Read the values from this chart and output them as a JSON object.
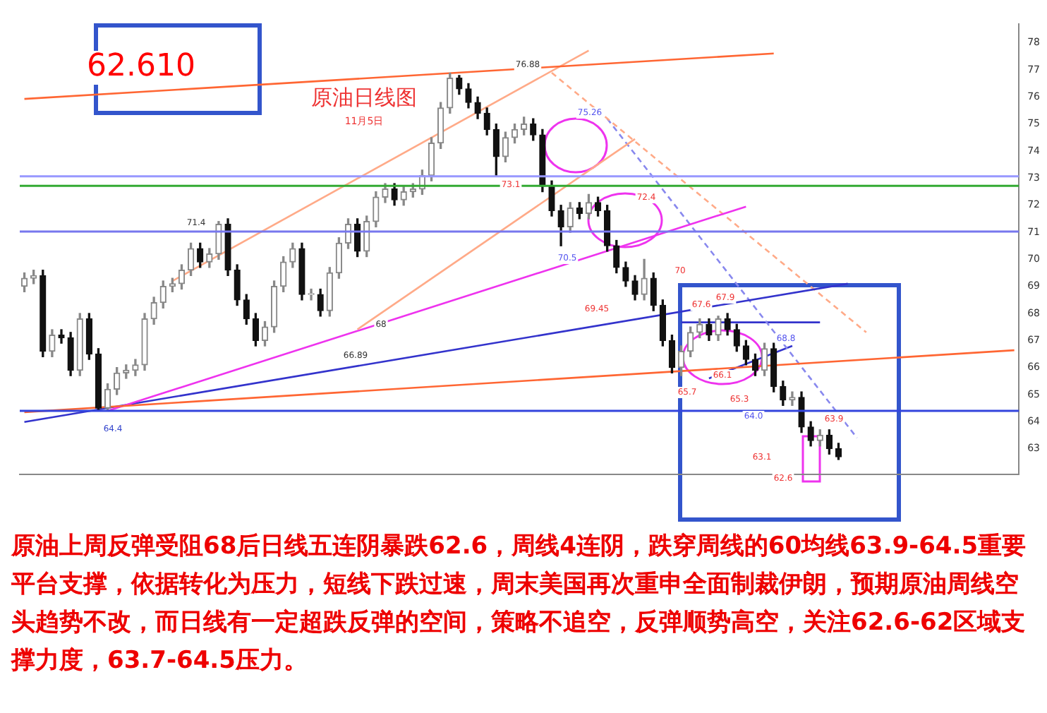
{
  "chart_data": {
    "type": "candlestick",
    "title": "原油日线图",
    "subtitle": "11月5日",
    "categories": [
      null,
      null,
      null,
      null,
      null,
      null,
      null,
      null,
      null,
      null,
      null,
      null,
      null,
      null,
      null,
      null,
      null,
      null,
      null,
      null,
      null,
      null,
      null,
      null,
      null,
      null,
      null,
      null,
      null,
      null,
      null,
      null,
      null,
      null,
      null,
      null,
      null,
      null,
      null,
      null,
      null,
      null,
      null,
      null,
      null,
      null,
      null,
      null,
      null,
      null,
      null,
      null,
      null,
      null,
      null,
      null,
      null,
      null,
      null,
      null,
      null,
      null,
      null,
      null,
      null,
      null,
      null,
      null,
      null,
      null,
      null,
      null,
      null,
      null,
      null,
      null,
      null,
      null,
      null,
      null,
      null,
      null,
      null,
      null,
      null,
      null,
      null,
      null,
      null,
      null,
      null,
      null,
      null,
      null,
      null,
      null,
      null,
      null,
      null,
      null,
      null,
      null,
      null,
      null,
      null,
      null,
      null,
      null
    ],
    "ohlc": [
      [
        69.0,
        69.5,
        68.8,
        69.3
      ],
      [
        69.3,
        69.6,
        69.1,
        69.4
      ],
      [
        69.4,
        69.6,
        66.4,
        66.6
      ],
      [
        66.6,
        67.4,
        66.4,
        67.2
      ],
      [
        67.2,
        67.4,
        66.9,
        67.1
      ],
      [
        67.1,
        67.3,
        65.7,
        65.9
      ],
      [
        65.9,
        68.0,
        65.7,
        67.8
      ],
      [
        67.8,
        68.0,
        66.3,
        66.5
      ],
      [
        66.5,
        66.7,
        64.4,
        64.5
      ],
      [
        64.5,
        65.4,
        64.4,
        65.2
      ],
      [
        65.2,
        66.0,
        65.0,
        65.8
      ],
      [
        65.8,
        66.1,
        65.6,
        65.9
      ],
      [
        65.9,
        66.3,
        65.7,
        66.1
      ],
      [
        66.1,
        68.0,
        65.9,
        67.8
      ],
      [
        67.8,
        68.6,
        67.6,
        68.4
      ],
      [
        68.4,
        69.2,
        68.2,
        69.0
      ],
      [
        69.0,
        69.3,
        68.8,
        69.1
      ],
      [
        69.1,
        69.8,
        68.9,
        69.6
      ],
      [
        69.6,
        70.6,
        69.4,
        70.4
      ],
      [
        70.4,
        70.6,
        69.7,
        69.9
      ],
      [
        69.9,
        70.4,
        69.7,
        70.2
      ],
      [
        70.2,
        71.4,
        70.0,
        71.3
      ],
      [
        71.3,
        71.5,
        69.4,
        69.6
      ],
      [
        69.6,
        69.8,
        68.3,
        68.5
      ],
      [
        68.5,
        68.7,
        67.6,
        67.8
      ],
      [
        67.8,
        68.0,
        66.8,
        67.0
      ],
      [
        67.0,
        67.7,
        66.8,
        67.5
      ],
      [
        67.5,
        69.2,
        67.3,
        69.0
      ],
      [
        69.0,
        70.1,
        68.8,
        69.9
      ],
      [
        69.9,
        70.6,
        69.7,
        70.4
      ],
      [
        70.4,
        70.6,
        68.5,
        68.7
      ],
      [
        68.7,
        68.9,
        68.5,
        68.7
      ],
      [
        68.7,
        68.9,
        67.9,
        68.1
      ],
      [
        68.1,
        69.7,
        67.9,
        69.5
      ],
      [
        69.5,
        70.8,
        69.3,
        70.6
      ],
      [
        70.6,
        71.5,
        70.4,
        71.3
      ],
      [
        71.3,
        71.5,
        70.1,
        70.3
      ],
      [
        70.3,
        71.6,
        70.1,
        71.4
      ],
      [
        71.4,
        72.5,
        71.2,
        72.3
      ],
      [
        72.3,
        72.8,
        72.1,
        72.6
      ],
      [
        72.6,
        72.8,
        72.0,
        72.2
      ],
      [
        72.2,
        72.7,
        72.0,
        72.5
      ],
      [
        72.5,
        72.8,
        72.3,
        72.6
      ],
      [
        72.6,
        73.3,
        72.4,
        73.1
      ],
      [
        73.1,
        74.5,
        72.9,
        74.3
      ],
      [
        74.3,
        75.8,
        74.1,
        75.6
      ],
      [
        75.6,
        76.88,
        75.4,
        76.7
      ],
      [
        76.7,
        76.8,
        76.1,
        76.3
      ],
      [
        76.3,
        76.5,
        75.6,
        75.8
      ],
      [
        75.8,
        76.0,
        75.2,
        75.4
      ],
      [
        75.4,
        75.6,
        74.6,
        74.8
      ],
      [
        74.8,
        75.0,
        73.1,
        73.8
      ],
      [
        73.8,
        74.7,
        73.6,
        74.5
      ],
      [
        74.5,
        75.0,
        74.3,
        74.8
      ],
      [
        74.8,
        75.26,
        74.6,
        75.0
      ],
      [
        75.0,
        75.2,
        74.4,
        74.6
      ],
      [
        74.6,
        74.8,
        72.5,
        72.7
      ],
      [
        72.7,
        72.9,
        71.6,
        71.8
      ],
      [
        71.8,
        72.0,
        70.5,
        71.2
      ],
      [
        71.2,
        72.1,
        71.0,
        71.9
      ],
      [
        71.9,
        72.1,
        71.5,
        71.7
      ],
      [
        71.7,
        72.4,
        71.5,
        72.1
      ],
      [
        72.1,
        72.3,
        71.6,
        71.8
      ],
      [
        71.8,
        72.0,
        70.3,
        70.5
      ],
      [
        70.5,
        70.7,
        69.5,
        69.7
      ],
      [
        69.7,
        69.9,
        69.0,
        69.2
      ],
      [
        69.2,
        69.4,
        68.5,
        68.7
      ],
      [
        68.7,
        70.0,
        68.5,
        69.3
      ],
      [
        69.3,
        69.5,
        68.1,
        68.3
      ],
      [
        68.3,
        68.5,
        66.8,
        67.0
      ],
      [
        67.0,
        67.2,
        65.8,
        66.0
      ],
      [
        66.0,
        66.8,
        65.7,
        66.6
      ],
      [
        66.6,
        67.5,
        66.4,
        67.3
      ],
      [
        67.3,
        67.8,
        67.1,
        67.6
      ],
      [
        67.6,
        67.8,
        67.0,
        67.2
      ],
      [
        67.2,
        67.9,
        67.0,
        67.8
      ],
      [
        67.8,
        68.0,
        67.2,
        67.4
      ],
      [
        67.4,
        67.6,
        66.6,
        66.8
      ],
      [
        66.8,
        67.0,
        66.1,
        66.3
      ],
      [
        66.3,
        66.5,
        65.7,
        65.9
      ],
      [
        65.9,
        66.9,
        65.7,
        66.7
      ],
      [
        66.7,
        66.9,
        65.1,
        65.3
      ],
      [
        65.3,
        65.5,
        64.6,
        64.8
      ],
      [
        64.8,
        65.1,
        64.6,
        64.9
      ],
      [
        64.9,
        65.1,
        63.6,
        63.8
      ],
      [
        63.8,
        64.0,
        63.1,
        63.3
      ],
      [
        63.3,
        63.7,
        63.1,
        63.5
      ],
      [
        63.5,
        63.7,
        62.8,
        63.0
      ],
      [
        63.0,
        63.2,
        62.6,
        62.7
      ],
      null,
      null,
      null,
      null,
      null,
      null,
      null,
      null,
      null,
      null,
      null,
      null,
      null,
      null,
      null,
      null,
      null,
      null,
      null
    ],
    "series": [
      {
        "type": "line",
        "color": "#ff6633",
        "values": [
          75.93,
          null,
          null,
          null,
          null,
          null,
          null,
          null,
          null,
          null,
          null,
          null,
          null,
          null,
          null,
          null,
          null,
          null,
          null,
          null,
          null,
          null,
          null,
          null,
          null,
          null,
          null,
          null,
          null,
          null,
          null,
          null,
          null,
          null,
          null,
          null,
          null,
          null,
          null,
          null,
          null,
          null,
          null,
          null,
          null,
          null,
          null,
          null,
          null,
          null,
          null,
          null,
          null,
          null,
          null,
          null,
          null,
          null,
          null,
          null,
          null,
          null,
          null,
          null,
          null,
          null,
          null,
          null,
          null,
          null,
          null,
          null,
          null,
          null,
          null,
          null,
          null,
          null,
          null,
          null,
          null,
          77.61,
          null,
          null,
          null,
          null,
          null,
          null,
          null,
          null,
          null,
          null,
          null,
          null,
          null,
          null,
          null,
          null,
          null,
          null,
          null,
          null,
          null,
          null,
          null,
          null,
          null,
          null
        ]
      },
      {
        "type": "line",
        "color": "#ff6633",
        "values": [
          64.35,
          null,
          null,
          null,
          null,
          null,
          null,
          null,
          null,
          null,
          null,
          null,
          null,
          null,
          null,
          null,
          null,
          null,
          null,
          null,
          null,
          null,
          null,
          null,
          null,
          null,
          null,
          null,
          null,
          null,
          null,
          null,
          null,
          null,
          null,
          null,
          null,
          null,
          null,
          null,
          null,
          null,
          null,
          null,
          null,
          null,
          null,
          null,
          null,
          null,
          null,
          null,
          null,
          null,
          null,
          null,
          null,
          null,
          null,
          null,
          null,
          null,
          null,
          null,
          null,
          null,
          null,
          null,
          null,
          null,
          null,
          null,
          null,
          null,
          null,
          null,
          null,
          null,
          null,
          null,
          null,
          null,
          null,
          null,
          null,
          null,
          null,
          null,
          null,
          null,
          null,
          null,
          null,
          null,
          null,
          null,
          null,
          null,
          null,
          null,
          null,
          null,
          null,
          null,
          null,
          null,
          null,
          66.64
        ]
      },
      {
        "type": "line",
        "color": "#ffaa88",
        "values": [
          null,
          null,
          null,
          null,
          null,
          null,
          null,
          null,
          null,
          null,
          null,
          null,
          null,
          null,
          null,
          null,
          69.2,
          null,
          null,
          null,
          null,
          null,
          null,
          null,
          null,
          null,
          null,
          null,
          null,
          null,
          null,
          null,
          null,
          null,
          null,
          null,
          null,
          null,
          null,
          null,
          null,
          null,
          null,
          null,
          null,
          null,
          null,
          null,
          null,
          null,
          null,
          null,
          null,
          null,
          null,
          null,
          null,
          null,
          null,
          null,
          null,
          77.72,
          null,
          null,
          null,
          null,
          null,
          null,
          null,
          null,
          null,
          null,
          null,
          null,
          null,
          null,
          null,
          null,
          null,
          null,
          null,
          null,
          null,
          null,
          null,
          null,
          null,
          null,
          null,
          null,
          null,
          null,
          null,
          null,
          null,
          null,
          null,
          null,
          null,
          null,
          null,
          null,
          null,
          null,
          null,
          null,
          null,
          null
        ]
      },
      {
        "type": "line",
        "color": "#ffaa88",
        "values": [
          null,
          null,
          null,
          null,
          null,
          null,
          null,
          null,
          null,
          null,
          null,
          null,
          null,
          null,
          null,
          null,
          null,
          null,
          null,
          null,
          null,
          null,
          null,
          null,
          null,
          null,
          null,
          null,
          null,
          null,
          null,
          null,
          null,
          null,
          null,
          null,
          67.41,
          null,
          null,
          null,
          null,
          null,
          null,
          null,
          null,
          null,
          null,
          null,
          null,
          null,
          null,
          null,
          null,
          null,
          null,
          null,
          null,
          null,
          null,
          null,
          null,
          null,
          null,
          null,
          null,
          null,
          74.45,
          null,
          null,
          null,
          null,
          null,
          null,
          null,
          null,
          null,
          null,
          null,
          null,
          null,
          null,
          null,
          null,
          null,
          null,
          null,
          null,
          null,
          null,
          null,
          null,
          null,
          null,
          null,
          null,
          null,
          null,
          null,
          null,
          null,
          null,
          null,
          null,
          null,
          null,
          null,
          null,
          null
        ]
      },
      {
        "type": "line",
        "color": "#ee33ee",
        "values": [
          null,
          null,
          null,
          null,
          null,
          null,
          null,
          null,
          null,
          64.4,
          null,
          null,
          null,
          null,
          null,
          null,
          null,
          null,
          null,
          null,
          null,
          null,
          null,
          null,
          null,
          null,
          null,
          null,
          null,
          null,
          null,
          null,
          null,
          null,
          null,
          null,
          null,
          null,
          null,
          null,
          null,
          null,
          null,
          null,
          null,
          null,
          null,
          null,
          null,
          null,
          null,
          null,
          null,
          null,
          null,
          null,
          null,
          null,
          null,
          null,
          null,
          null,
          null,
          null,
          null,
          null,
          null,
          null,
          null,
          null,
          null,
          null,
          null,
          null,
          null,
          null,
          null,
          null,
          71.95,
          null,
          null,
          null,
          null,
          null,
          null,
          null,
          null,
          null,
          null,
          null,
          null,
          null,
          null,
          null,
          null,
          null,
          null,
          null,
          null,
          null,
          null,
          null,
          null,
          null,
          null,
          null,
          null,
          null
        ]
      },
      {
        "type": "line",
        "color": "#3333cc",
        "values": [
          63.99,
          null,
          null,
          null,
          null,
          null,
          null,
          null,
          null,
          null,
          null,
          null,
          null,
          null,
          null,
          null,
          null,
          null,
          null,
          null,
          null,
          null,
          null,
          null,
          null,
          null,
          null,
          null,
          null,
          null,
          null,
          null,
          null,
          null,
          null,
          null,
          null,
          null,
          null,
          null,
          null,
          null,
          null,
          null,
          null,
          null,
          null,
          null,
          null,
          null,
          null,
          null,
          null,
          null,
          null,
          null,
          null,
          null,
          null,
          null,
          null,
          null,
          null,
          null,
          null,
          null,
          null,
          null,
          null,
          null,
          null,
          null,
          null,
          null,
          null,
          null,
          null,
          null,
          null,
          null,
          null,
          null,
          null,
          null,
          null,
          null,
          null,
          null,
          null,
          69.1,
          null,
          null,
          null,
          null,
          null,
          null,
          null,
          null,
          null,
          null,
          null,
          null,
          null,
          null,
          null,
          null,
          null,
          null
        ]
      },
      {
        "type": "line",
        "color": "#ffaa88",
        "line_style": "dashed",
        "values": [
          null,
          null,
          null,
          null,
          null,
          null,
          null,
          null,
          null,
          null,
          null,
          null,
          null,
          null,
          null,
          null,
          null,
          null,
          null,
          null,
          null,
          null,
          null,
          null,
          null,
          null,
          null,
          null,
          null,
          null,
          null,
          null,
          null,
          null,
          null,
          null,
          null,
          null,
          null,
          null,
          null,
          null,
          null,
          null,
          null,
          null,
          null,
          null,
          null,
          null,
          null,
          null,
          null,
          null,
          null,
          null,
          null,
          76.9,
          null,
          null,
          null,
          null,
          null,
          null,
          null,
          null,
          null,
          null,
          null,
          null,
          null,
          null,
          null,
          null,
          null,
          null,
          null,
          null,
          null,
          null,
          null,
          null,
          null,
          null,
          null,
          null,
          null,
          null,
          null,
          null,
          null,
          67.3,
          null,
          null,
          null,
          null,
          null,
          null,
          null,
          null,
          null,
          null,
          null,
          null,
          null,
          null,
          null,
          null
        ]
      },
      {
        "type": "line",
        "color": "#8888ee",
        "line_style": "dashed",
        "values": [
          null,
          null,
          null,
          null,
          null,
          null,
          null,
          null,
          null,
          null,
          null,
          null,
          null,
          null,
          null,
          null,
          null,
          null,
          null,
          null,
          null,
          null,
          null,
          null,
          null,
          null,
          null,
          null,
          null,
          null,
          null,
          null,
          null,
          null,
          null,
          null,
          null,
          null,
          null,
          null,
          null,
          null,
          null,
          null,
          null,
          null,
          null,
          null,
          null,
          null,
          null,
          null,
          null,
          null,
          null,
          null,
          null,
          null,
          null,
          null,
          null,
          null,
          null,
          75.2,
          null,
          null,
          null,
          null,
          null,
          null,
          null,
          null,
          null,
          null,
          null,
          null,
          null,
          null,
          null,
          null,
          null,
          null,
          null,
          null,
          null,
          null,
          null,
          null,
          null,
          null,
          63.4,
          null,
          null,
          null,
          null,
          null,
          null,
          null,
          null,
          null,
          null,
          null,
          null,
          null,
          null,
          null,
          null,
          null
        ]
      },
      {
        "type": "line",
        "color": "#3333cc",
        "values": [
          null,
          null,
          null,
          null,
          null,
          null,
          null,
          null,
          null,
          null,
          null,
          null,
          null,
          null,
          null,
          null,
          null,
          null,
          null,
          null,
          null,
          null,
          null,
          null,
          null,
          null,
          null,
          null,
          null,
          null,
          null,
          null,
          null,
          null,
          null,
          null,
          null,
          null,
          null,
          null,
          null,
          null,
          null,
          null,
          null,
          null,
          null,
          null,
          null,
          null,
          null,
          null,
          null,
          null,
          null,
          null,
          null,
          null,
          null,
          null,
          null,
          null,
          null,
          null,
          null,
          null,
          null,
          null,
          null,
          null,
          null,
          null,
          null,
          null,
          65.6,
          null,
          null,
          null,
          null,
          null,
          null,
          null,
          null,
          66.8,
          null,
          null,
          null,
          null,
          null,
          null,
          null,
          null,
          null,
          null,
          null,
          null,
          null,
          null,
          null,
          null,
          null,
          null,
          null,
          null,
          null,
          null,
          null,
          null
        ]
      },
      {
        "type": "line",
        "color": "#3333cc",
        "values": [
          null,
          null,
          null,
          null,
          null,
          null,
          null,
          null,
          null,
          null,
          null,
          null,
          null,
          null,
          null,
          null,
          null,
          null,
          null,
          null,
          null,
          null,
          null,
          null,
          null,
          null,
          null,
          null,
          null,
          null,
          null,
          null,
          null,
          null,
          null,
          null,
          null,
          null,
          null,
          null,
          null,
          null,
          null,
          null,
          null,
          null,
          null,
          null,
          null,
          null,
          null,
          null,
          null,
          null,
          null,
          null,
          null,
          null,
          null,
          null,
          null,
          null,
          null,
          null,
          null,
          null,
          null,
          null,
          null,
          null,
          null,
          67.67,
          null,
          null,
          null,
          null,
          null,
          null,
          null,
          null,
          null,
          null,
          null,
          null,
          null,
          null,
          67.67,
          null,
          null,
          null,
          null,
          null,
          null,
          null,
          null,
          null,
          null,
          null,
          null,
          null,
          null,
          null,
          null,
          null,
          null,
          null,
          null,
          null
        ]
      }
    ],
    "ylim": [
      62.05,
      78.7
    ],
    "yticks": [
      63,
      64,
      65,
      66,
      67,
      68,
      69,
      70,
      71,
      72,
      73,
      74,
      75,
      76,
      77,
      78
    ],
    "tick_labels": "y",
    "ref_lines": [
      {
        "axis": "y",
        "value": 73.07,
        "color": "#9999ff"
      },
      {
        "axis": "y",
        "value": 72.72,
        "color": "#33aa33"
      },
      {
        "axis": "y",
        "value": 71.03,
        "color": "#7777ee"
      },
      {
        "axis": "y",
        "value": 64.4,
        "color": "#3344dd"
      }
    ],
    "annotations": [
      "62.610",
      "64.4",
      "71.4",
      "66.89",
      "68",
      "76.88",
      "75.26",
      "73.1",
      "72.4",
      "70.5",
      "69.45",
      "70",
      "67.6",
      "67.9",
      "68.8",
      "66.1",
      "65.7",
      "65.3",
      "64.0",
      "63.9",
      "63.1",
      "62.6",
      "原油上周反弹受阻68后日线五连阴暴跌62.6，周线4连阴，跌穿周线的60均线63.9-64.5重要平台支撑，依据转化为压力，短线下跌过速，周末美国再次重申全面制裁伊朗，预期原油周线空头趋势不改，而日线有一定超跌反弹的空间，策略不追空，反弹顺势高空，关注62.6-62区域支撑力度，63.7-64.5压力。"
    ]
  }
}
